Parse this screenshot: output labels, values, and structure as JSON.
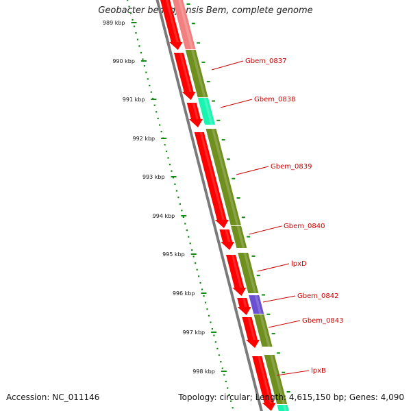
{
  "title": "Geobacter bemidjiensis Bem, complete genome",
  "footer": {
    "accession": "Accession: NC_011146",
    "summary": "Topology: circular; Length: 4,615,150 bp; Genes: 4,090"
  },
  "colors": {
    "cds_red": "#ff0000",
    "olive": "#6f8f1e",
    "cyan": "#19f5b0",
    "purple": "#6a4fd0",
    "pink": "#f28080",
    "tick_green": "#118811",
    "label_red": "#cc0000",
    "backbone": "#7a7a7a"
  },
  "scale_labels": [
    "989 kbp",
    "990 kbp",
    "991 kbp",
    "992 kbp",
    "993 kbp",
    "994 kbp",
    "995 kbp",
    "996 kbp",
    "997 kbp",
    "998 kbp"
  ],
  "gene_labels": [
    "Gbem_0837",
    "Gbem_0838",
    "Gbem_0839",
    "Gbem_0840",
    "lpxD",
    "Gbem_0842",
    "Gbem_0843",
    "lpxB"
  ]
}
